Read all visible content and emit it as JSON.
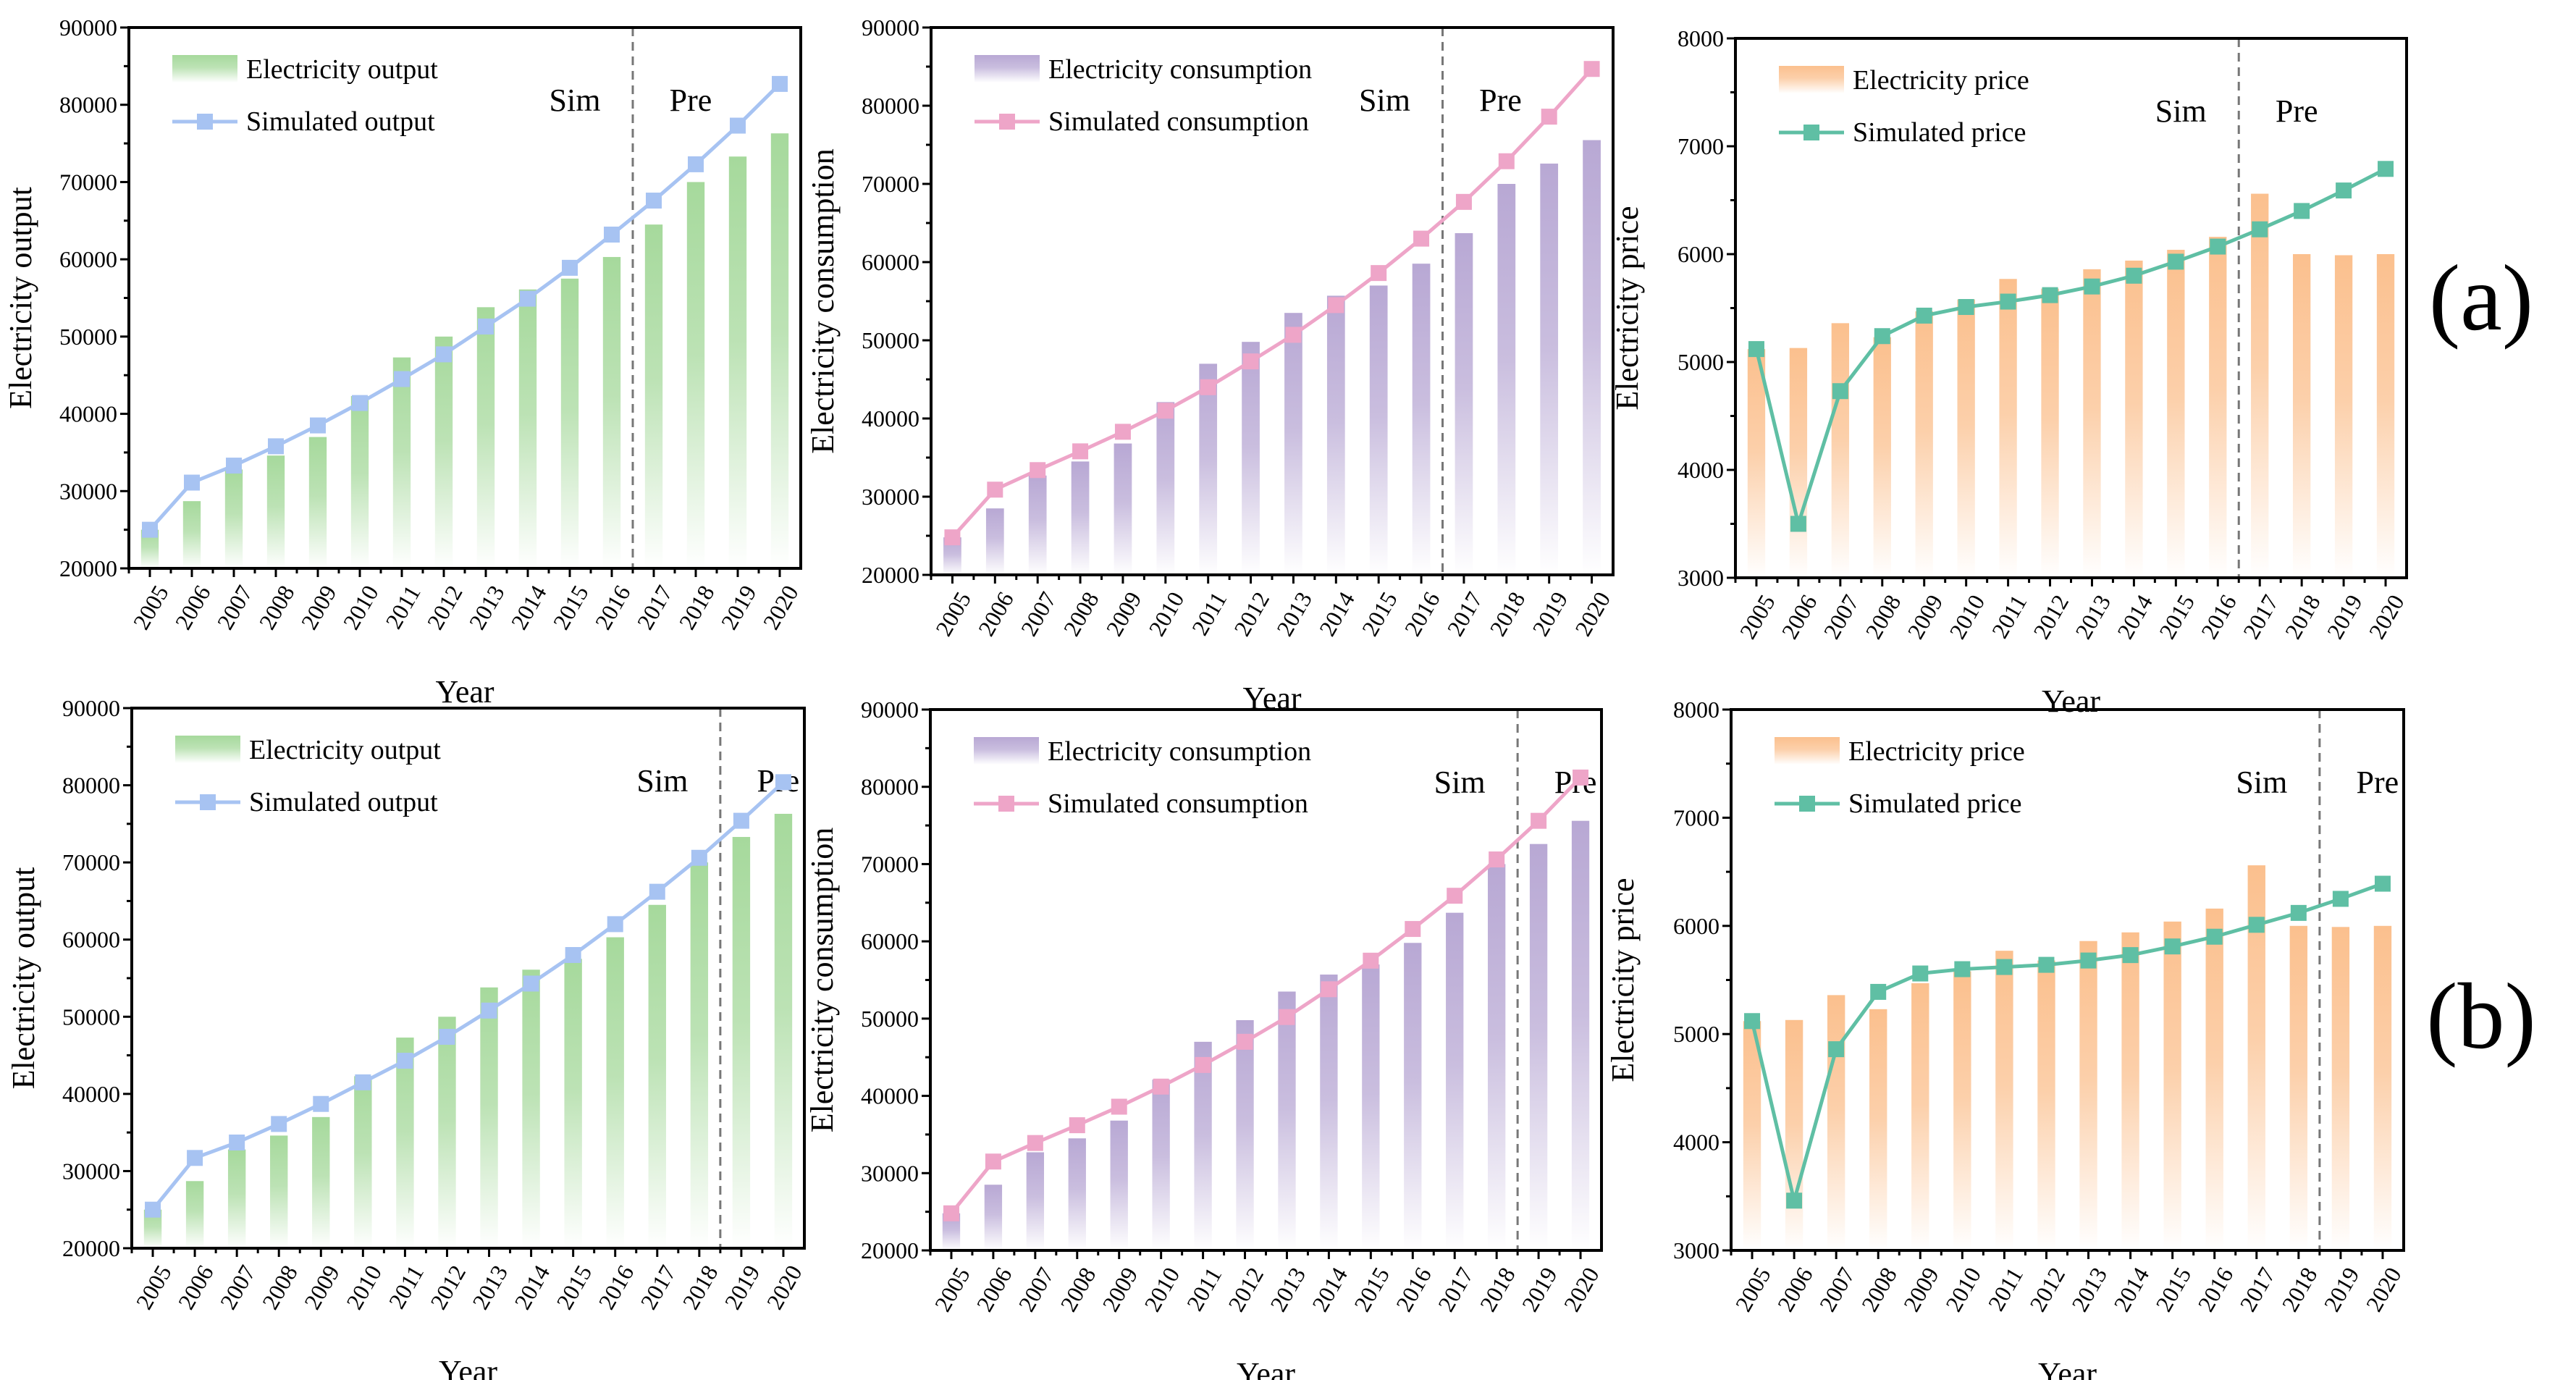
{
  "panel_labels": [
    "(a)",
    "(b)"
  ],
  "chart_data": [
    {
      "type": "bar+line",
      "panel": "(a)",
      "categories": [
        "2005",
        "2006",
        "2007",
        "2008",
        "2009",
        "2010",
        "2011",
        "2012",
        "2013",
        "2014",
        "2015",
        "2016",
        "2017",
        "2018",
        "2019",
        "2020"
      ],
      "xlabel": "Year",
      "ylabel": "Electricity output",
      "ylim": [
        20000,
        90000
      ],
      "yticks": [
        "20000",
        "30000",
        "40000",
        "50000",
        "60000",
        "70000",
        "80000",
        "90000"
      ],
      "grid": false,
      "legend": "top-left",
      "sim_label": "Sim",
      "pre_label": "Pre",
      "sim_until": "2016",
      "series": [
        {
          "name": "Electricity output",
          "kind": "bar",
          "color": "#a6d99c",
          "values": [
            25000,
            28700,
            32800,
            34600,
            37000,
            42300,
            47300,
            50000,
            53800,
            56100,
            57500,
            60300,
            64500,
            70000,
            73300,
            76300
          ]
        },
        {
          "name": "Simulated output",
          "kind": "line",
          "color": "#a7c3f2",
          "values": [
            25000,
            31100,
            33300,
            35800,
            38500,
            41400,
            44500,
            47700,
            51300,
            54900,
            58900,
            63200,
            67600,
            72300,
            77300,
            82700
          ]
        }
      ]
    },
    {
      "type": "bar+line",
      "panel": "(a)",
      "categories": [
        "2005",
        "2006",
        "2007",
        "2008",
        "2009",
        "2010",
        "2011",
        "2012",
        "2013",
        "2014",
        "2015",
        "2016",
        "2017",
        "2018",
        "2019",
        "2020"
      ],
      "xlabel": "Year",
      "ylabel": "Electricity consumption",
      "ylim": [
        20000,
        90000
      ],
      "yticks": [
        "20000",
        "30000",
        "40000",
        "50000",
        "60000",
        "70000",
        "80000",
        "90000"
      ],
      "grid": false,
      "legend": "top-left",
      "sim_label": "Sim",
      "pre_label": "Pre",
      "sim_until": "2016",
      "series": [
        {
          "name": "Electricity consumption",
          "kind": "bar",
          "color": "#b8a8d4",
          "values": [
            24800,
            28500,
            32700,
            34500,
            36800,
            42100,
            47000,
            49800,
            53500,
            55700,
            57000,
            59800,
            63700,
            70000,
            72600,
            75600
          ]
        },
        {
          "name": "Simulated consumption",
          "kind": "line",
          "color": "#eea5c8",
          "values": [
            24800,
            30900,
            33400,
            35800,
            38300,
            41000,
            44000,
            47300,
            50700,
            54500,
            58600,
            63000,
            67700,
            72900,
            78600,
            84700
          ]
        }
      ]
    },
    {
      "type": "bar+line",
      "panel": "(a)",
      "categories": [
        "2005",
        "2006",
        "2007",
        "2008",
        "2009",
        "2010",
        "2011",
        "2012",
        "2013",
        "2014",
        "2015",
        "2016",
        "2017",
        "2018",
        "2019",
        "2020"
      ],
      "xlabel": "Year",
      "ylabel": "Electricity price",
      "ylim": [
        3000,
        8000
      ],
      "yticks": [
        "3000",
        "4000",
        "5000",
        "6000",
        "7000",
        "8000"
      ],
      "grid": false,
      "legend": "top-left",
      "sim_label": "Sim",
      "pre_label": "Pre",
      "sim_until": "2016",
      "series": [
        {
          "name": "Electricity price",
          "kind": "bar",
          "color": "#fbc08e",
          "values": [
            5120,
            5130,
            5360,
            5230,
            5470,
            5580,
            5770,
            5680,
            5860,
            5940,
            6040,
            6160,
            6560,
            6000,
            5990,
            6000
          ]
        },
        {
          "name": "Simulated price",
          "kind": "line",
          "color": "#5fbfa4",
          "values": [
            5120,
            3500,
            4730,
            5240,
            5430,
            5510,
            5560,
            5620,
            5700,
            5800,
            5930,
            6070,
            6230,
            6400,
            6590,
            6790
          ]
        }
      ]
    },
    {
      "type": "bar+line",
      "panel": "(b)",
      "categories": [
        "2005",
        "2006",
        "2007",
        "2008",
        "2009",
        "2010",
        "2011",
        "2012",
        "2013",
        "2014",
        "2015",
        "2016",
        "2017",
        "2018",
        "2019",
        "2020"
      ],
      "xlabel": "Year",
      "ylabel": "Electricity output",
      "ylim": [
        20000,
        90000
      ],
      "yticks": [
        "20000",
        "30000",
        "40000",
        "50000",
        "60000",
        "70000",
        "80000",
        "90000"
      ],
      "grid": false,
      "legend": "top-left",
      "sim_label": "Sim",
      "pre_label": "Pre",
      "sim_until": "2018",
      "series": [
        {
          "name": "Electricity output",
          "kind": "bar",
          "color": "#a6d99c",
          "values": [
            25000,
            28700,
            32800,
            34600,
            37000,
            42300,
            47300,
            50000,
            53800,
            56100,
            57500,
            60300,
            64500,
            70000,
            73300,
            76300
          ]
        },
        {
          "name": "Simulated output",
          "kind": "line",
          "color": "#a7c3f2",
          "values": [
            25000,
            31700,
            33700,
            36100,
            38700,
            41500,
            44300,
            47400,
            50800,
            54300,
            58000,
            62000,
            66200,
            70600,
            75400,
            80400
          ]
        }
      ]
    },
    {
      "type": "bar+line",
      "panel": "(b)",
      "categories": [
        "2005",
        "2006",
        "2007",
        "2008",
        "2009",
        "2010",
        "2011",
        "2012",
        "2013",
        "2014",
        "2015",
        "2016",
        "2017",
        "2018",
        "2019",
        "2020"
      ],
      "xlabel": "Year",
      "ylabel": "Electricity consumption",
      "ylim": [
        20000,
        90000
      ],
      "yticks": [
        "20000",
        "30000",
        "40000",
        "50000",
        "60000",
        "70000",
        "80000",
        "90000"
      ],
      "grid": false,
      "legend": "top-left",
      "sim_label": "Sim",
      "pre_label": "Pre",
      "sim_until": "2018",
      "series": [
        {
          "name": "Electricity consumption",
          "kind": "bar",
          "color": "#b8a8d4",
          "values": [
            24800,
            28500,
            32700,
            34500,
            36800,
            42100,
            47000,
            49800,
            53500,
            55700,
            57000,
            59800,
            63700,
            70000,
            72600,
            75600
          ]
        },
        {
          "name": "Simulated consumption",
          "kind": "line",
          "color": "#eea5c8",
          "values": [
            24800,
            31500,
            33900,
            36200,
            38600,
            41200,
            44000,
            47000,
            50200,
            53800,
            57500,
            61600,
            65900,
            70600,
            75600,
            81200
          ]
        }
      ]
    },
    {
      "type": "bar+line",
      "panel": "(b)",
      "categories": [
        "2005",
        "2006",
        "2007",
        "2008",
        "2009",
        "2010",
        "2011",
        "2012",
        "2013",
        "2014",
        "2015",
        "2016",
        "2017",
        "2018",
        "2019",
        "2020"
      ],
      "xlabel": "Year",
      "ylabel": "Electricity price",
      "ylim": [
        3000,
        8000
      ],
      "yticks": [
        "3000",
        "4000",
        "5000",
        "6000",
        "7000",
        "8000"
      ],
      "grid": false,
      "legend": "top-left",
      "sim_label": "Sim",
      "pre_label": "Pre",
      "sim_until": "2018",
      "series": [
        {
          "name": "Electricity price",
          "kind": "bar",
          "color": "#fbc08e",
          "values": [
            5120,
            5130,
            5360,
            5230,
            5470,
            5580,
            5770,
            5680,
            5860,
            5940,
            6040,
            6160,
            6560,
            6000,
            5990,
            6000
          ]
        },
        {
          "name": "Simulated price",
          "kind": "line",
          "color": "#5fbfa4",
          "values": [
            5120,
            3460,
            4860,
            5390,
            5560,
            5600,
            5620,
            5640,
            5680,
            5730,
            5810,
            5900,
            6010,
            6120,
            6250,
            6390
          ]
        }
      ]
    }
  ]
}
